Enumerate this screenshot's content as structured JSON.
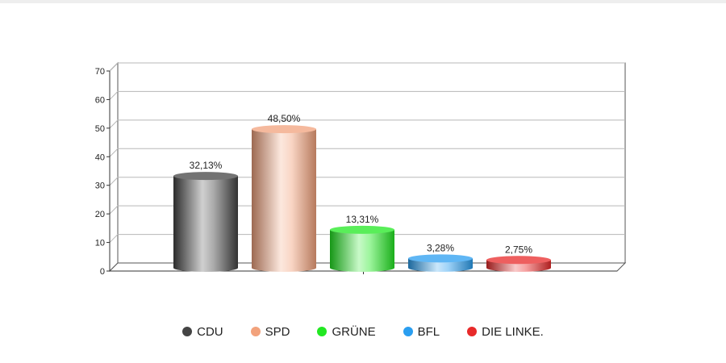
{
  "chart_data": {
    "type": "bar",
    "title": "",
    "xlabel": "",
    "ylabel": "",
    "categories": [
      "CDU",
      "SPD",
      "GRÜNE",
      "BFL",
      "DIE LINKE."
    ],
    "values": [
      32.13,
      48.5,
      13.31,
      3.28,
      2.75
    ],
    "data_labels": [
      "32,13%",
      "48,50%",
      "13,31%",
      "3,28%",
      "2,75%"
    ],
    "colors": [
      "#444444",
      "#f2a27c",
      "#22e822",
      "#2a9ef0",
      "#e82a2a"
    ],
    "ylim": [
      0,
      70
    ],
    "yticks": [
      0,
      10,
      20,
      30,
      40,
      50,
      60,
      70
    ],
    "grid": true,
    "legend_position": "bottom",
    "style": "3d-cylinder"
  }
}
